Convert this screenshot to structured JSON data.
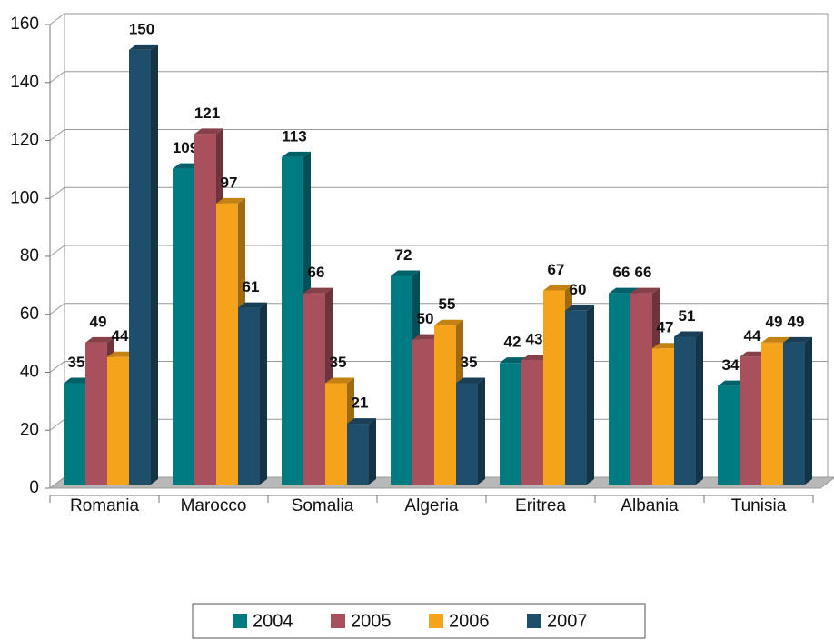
{
  "chart_data": {
    "type": "bar",
    "categories": [
      "Romania",
      "Marocco",
      "Somalia",
      "Algeria",
      "Eritrea",
      "Albania",
      "Tunisia"
    ],
    "series": [
      {
        "name": "2004",
        "color": "#007b82",
        "values": [
          35,
          109,
          113,
          72,
          42,
          66,
          34
        ]
      },
      {
        "name": "2005",
        "color": "#a8505c",
        "values": [
          49,
          121,
          66,
          50,
          43,
          66,
          44
        ]
      },
      {
        "name": "2006",
        "color": "#f5a31a",
        "values": [
          44,
          97,
          35,
          55,
          67,
          47,
          49
        ]
      },
      {
        "name": "2007",
        "color": "#1f4e6b",
        "values": [
          150,
          61,
          21,
          35,
          60,
          51,
          49
        ]
      }
    ],
    "ylim": [
      0,
      160
    ],
    "yticks": [
      0,
      20,
      40,
      60,
      80,
      100,
      120,
      140,
      160
    ],
    "grid": true,
    "legend": "bottom"
  }
}
